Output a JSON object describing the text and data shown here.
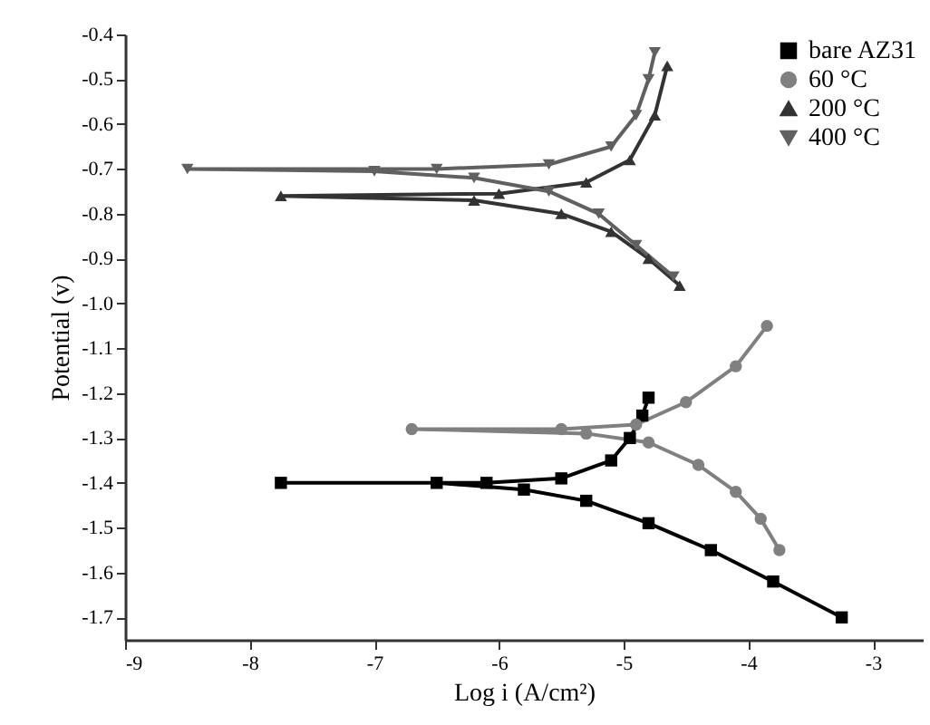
{
  "chart_data": {
    "type": "line",
    "xlabel": "Log i (A/cm²)",
    "ylabel": "Potential (v)",
    "xlim": [
      -9,
      -2.6
    ],
    "ylim": [
      -1.75,
      -0.4
    ],
    "xticks": [
      -9,
      -8,
      -7,
      -6,
      -5,
      -4,
      -3
    ],
    "yticks": [
      {
        "value": -0.4,
        "label": "-0.4"
      },
      {
        "value": -0.5,
        "label": "-0.5"
      },
      {
        "value": -0.6,
        "label": "-0.6"
      },
      {
        "value": -0.7,
        "label": "-0.7"
      },
      {
        "value": -0.8,
        "label": "-0.8"
      },
      {
        "value": -0.9,
        "label": "-0.9"
      },
      {
        "value": -1.0,
        "label": "-1.0"
      },
      {
        "value": -1.1,
        "label": "-1.1"
      },
      {
        "value": -1.2,
        "label": "-1.2"
      },
      {
        "value": -1.3,
        "label": "-1.3"
      },
      {
        "value": -1.4,
        "label": "-1.4"
      },
      {
        "value": -1.5,
        "label": "-1.5"
      },
      {
        "value": -1.6,
        "label": "-1.6"
      },
      {
        "value": -1.7,
        "label": "-1.7"
      }
    ],
    "grid": false,
    "legend": "top right",
    "line_style": "solid",
    "series": [
      {
        "name": "bare AZ31",
        "color": "#000000",
        "marker": "square",
        "x": [
          -3.25,
          -3.8,
          -4.3,
          -4.8,
          -5.3,
          -5.8,
          -6.5,
          -7.75,
          -6.1,
          -5.5,
          -5.1,
          -4.95,
          -4.85,
          -4.8
        ],
        "values": [
          -1.7,
          -1.62,
          -1.55,
          -1.49,
          -1.44,
          -1.415,
          -1.4,
          -1.4,
          -1.4,
          -1.39,
          -1.35,
          -1.3,
          -1.25,
          -1.21
        ]
      },
      {
        "name": "60 °C",
        "color": "#808080",
        "marker": "circle",
        "x": [
          -3.75,
          -3.9,
          -4.1,
          -4.4,
          -4.8,
          -5.3,
          -6.7,
          -5.5,
          -4.9,
          -4.5,
          -4.1,
          -3.85
        ],
        "values": [
          -1.55,
          -1.48,
          -1.42,
          -1.36,
          -1.31,
          -1.29,
          -1.28,
          -1.28,
          -1.27,
          -1.22,
          -1.14,
          -1.05
        ]
      },
      {
        "name": "200 °C",
        "color": "#333333",
        "marker": "triangle",
        "x": [
          -4.55,
          -4.8,
          -5.1,
          -5.5,
          -6.2,
          -7.75,
          -6.0,
          -5.3,
          -4.95,
          -4.75,
          -4.65
        ],
        "values": [
          -0.96,
          -0.9,
          -0.84,
          -0.8,
          -0.77,
          -0.76,
          -0.755,
          -0.73,
          -0.68,
          -0.58,
          -0.47
        ]
      },
      {
        "name": "400 °C",
        "color": "#606060",
        "marker": "triangle-down",
        "x": [
          -4.6,
          -4.9,
          -5.2,
          -5.6,
          -6.2,
          -7.0,
          -8.5,
          -6.5,
          -5.6,
          -5.1,
          -4.9,
          -4.8,
          -4.75
        ],
        "values": [
          -0.94,
          -0.87,
          -0.8,
          -0.75,
          -0.72,
          -0.705,
          -0.7,
          -0.7,
          -0.69,
          -0.65,
          -0.58,
          -0.5,
          -0.44
        ]
      }
    ]
  }
}
